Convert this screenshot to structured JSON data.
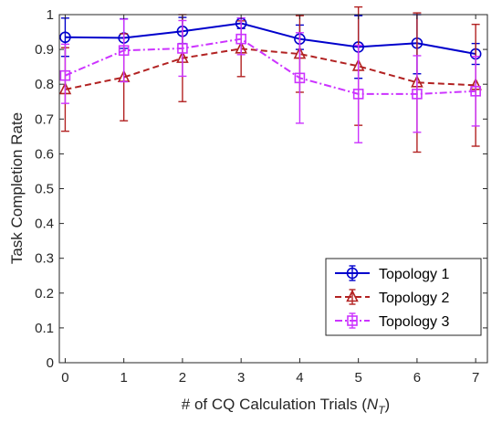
{
  "chart_data": {
    "type": "line",
    "xlabel_main": "# of CQ Calculation Trials (",
    "xlabel_var": "N",
    "xlabel_sub": "T",
    "xlabel_close": ")",
    "ylabel": "Task Completion Rate",
    "xlim": [
      -0.1,
      7.2
    ],
    "ylim": [
      0,
      1
    ],
    "x": [
      0,
      1,
      2,
      3,
      4,
      5,
      6,
      7
    ],
    "xticks": [
      "0",
      "1",
      "2",
      "3",
      "4",
      "5",
      "6",
      "7"
    ],
    "yticks": [
      "0",
      "0.1",
      "0.2",
      "0.3",
      "0.4",
      "0.5",
      "0.6",
      "0.7",
      "0.8",
      "0.9",
      "1"
    ],
    "legend_position": "bottom-right",
    "series": [
      {
        "name": "Topology 1",
        "color": "#0000cc",
        "marker": "circle",
        "dash": "solid",
        "values": [
          0.935,
          0.933,
          0.952,
          0.975,
          0.93,
          0.907,
          0.918,
          0.887
        ],
        "err_low": [
          0.055,
          0.03,
          0.035,
          0.015,
          0.03,
          0.09,
          0.088,
          0.03
        ],
        "err_high": [
          0.055,
          0.055,
          0.04,
          0.015,
          0.04,
          0.09,
          0.082,
          0.03
        ]
      },
      {
        "name": "Topology 2",
        "color": "#b22222",
        "marker": "triangle",
        "dash": "dashed",
        "values": [
          0.785,
          0.82,
          0.875,
          0.902,
          0.887,
          0.852,
          0.805,
          0.797
        ],
        "err_low": [
          0.12,
          0.125,
          0.125,
          0.08,
          0.11,
          0.17,
          0.2,
          0.175
        ],
        "err_high": [
          0.12,
          0.125,
          0.125,
          0.08,
          0.11,
          0.17,
          0.2,
          0.175
        ]
      },
      {
        "name": "Topology 3",
        "color": "#cc33ff",
        "marker": "square",
        "dash": "dashdot",
        "values": [
          0.825,
          0.897,
          0.903,
          0.93,
          0.818,
          0.772,
          0.772,
          0.78
        ],
        "err_low": [
          0.08,
          0.09,
          0.08,
          0.045,
          0.13,
          0.14,
          0.11,
          0.1
        ],
        "err_high": [
          0.09,
          0.09,
          0.08,
          0.06,
          0.13,
          0.14,
          0.11,
          0.1
        ]
      }
    ]
  }
}
